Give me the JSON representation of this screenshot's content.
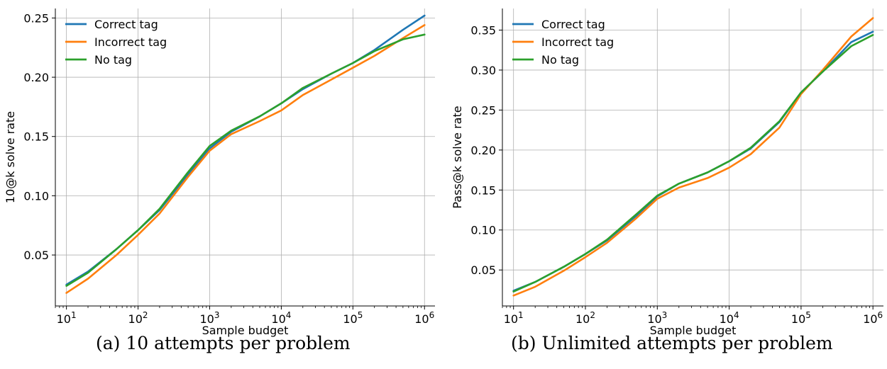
{
  "chart_data": [
    {
      "type": "line",
      "caption": "(a) 10 attempts per problem",
      "xlabel": "Sample budget",
      "ylabel": "10@k solve rate",
      "xscale": "log",
      "xlim": [
        7,
        1400000
      ],
      "ylim": [
        0.007,
        0.258
      ],
      "x_ticks": [
        {
          "value": 10,
          "exp": "1"
        },
        {
          "value": 100,
          "exp": "2"
        },
        {
          "value": 1000,
          "exp": "3"
        },
        {
          "value": 10000,
          "exp": "4"
        },
        {
          "value": 100000,
          "exp": "5"
        },
        {
          "value": 1000000,
          "exp": "6"
        }
      ],
      "y_ticks": [
        {
          "value": 0.05,
          "label": "0.05"
        },
        {
          "value": 0.1,
          "label": "0.10"
        },
        {
          "value": 0.15,
          "label": "0.15"
        },
        {
          "value": 0.2,
          "label": "0.20"
        },
        {
          "value": 0.25,
          "label": "0.25"
        }
      ],
      "grid": true,
      "legend": "upper-left",
      "series": [
        {
          "name": "Correct tag",
          "color": "#1f77b4",
          "x": [
            10,
            20,
            50,
            100,
            200,
            500,
            1000,
            2000,
            5000,
            10000,
            20000,
            50000,
            100000,
            200000,
            500000,
            1000000
          ],
          "y": [
            0.025,
            0.036,
            0.055,
            0.071,
            0.088,
            0.118,
            0.14,
            0.154,
            0.167,
            0.178,
            0.19,
            0.203,
            0.212,
            0.223,
            0.24,
            0.252
          ]
        },
        {
          "name": "Incorrect tag",
          "color": "#ff7f0e",
          "x": [
            10,
            20,
            50,
            100,
            200,
            500,
            1000,
            2000,
            5000,
            10000,
            20000,
            50000,
            100000,
            200000,
            500000,
            1000000
          ],
          "y": [
            0.018,
            0.03,
            0.05,
            0.067,
            0.085,
            0.116,
            0.138,
            0.152,
            0.163,
            0.172,
            0.185,
            0.198,
            0.208,
            0.218,
            0.233,
            0.244
          ]
        },
        {
          "name": "No tag",
          "color": "#2ca02c",
          "x": [
            10,
            20,
            50,
            100,
            200,
            500,
            1000,
            2000,
            5000,
            10000,
            20000,
            50000,
            100000,
            200000,
            500000,
            1000000
          ],
          "y": [
            0.024,
            0.035,
            0.055,
            0.071,
            0.089,
            0.12,
            0.142,
            0.155,
            0.167,
            0.178,
            0.191,
            0.203,
            0.212,
            0.222,
            0.232,
            0.236
          ]
        }
      ]
    },
    {
      "type": "line",
      "caption": "(b) Unlimited attempts per problem",
      "xlabel": "Sample budget",
      "ylabel": "Pass@k solve rate",
      "xscale": "log",
      "xlim": [
        7,
        1400000
      ],
      "ylim": [
        0.005,
        0.377
      ],
      "x_ticks": [
        {
          "value": 10,
          "exp": "1"
        },
        {
          "value": 100,
          "exp": "2"
        },
        {
          "value": 1000,
          "exp": "3"
        },
        {
          "value": 10000,
          "exp": "4"
        },
        {
          "value": 100000,
          "exp": "5"
        },
        {
          "value": 1000000,
          "exp": "6"
        }
      ],
      "y_ticks": [
        {
          "value": 0.05,
          "label": "0.05"
        },
        {
          "value": 0.1,
          "label": "0.10"
        },
        {
          "value": 0.15,
          "label": "0.15"
        },
        {
          "value": 0.2,
          "label": "0.20"
        },
        {
          "value": 0.25,
          "label": "0.25"
        },
        {
          "value": 0.3,
          "label": "0.30"
        },
        {
          "value": 0.35,
          "label": "0.35"
        }
      ],
      "grid": true,
      "legend": "upper-left",
      "series": [
        {
          "name": "Correct tag",
          "color": "#1f77b4",
          "x": [
            10,
            20,
            50,
            100,
            200,
            500,
            1000,
            2000,
            5000,
            10000,
            20000,
            50000,
            100000,
            200000,
            500000,
            1000000
          ],
          "y": [
            0.024,
            0.035,
            0.054,
            0.07,
            0.087,
            0.117,
            0.142,
            0.158,
            0.172,
            0.186,
            0.202,
            0.235,
            0.272,
            0.298,
            0.335,
            0.348
          ]
        },
        {
          "name": "Incorrect tag",
          "color": "#ff7f0e",
          "x": [
            10,
            20,
            50,
            100,
            200,
            500,
            1000,
            2000,
            5000,
            10000,
            20000,
            50000,
            100000,
            200000,
            500000,
            1000000
          ],
          "y": [
            0.018,
            0.029,
            0.049,
            0.066,
            0.084,
            0.114,
            0.139,
            0.153,
            0.165,
            0.178,
            0.195,
            0.228,
            0.27,
            0.3,
            0.342,
            0.365
          ]
        },
        {
          "name": "No tag",
          "color": "#2ca02c",
          "x": [
            10,
            20,
            50,
            100,
            200,
            500,
            1000,
            2000,
            5000,
            10000,
            20000,
            50000,
            100000,
            200000,
            500000,
            1000000
          ],
          "y": [
            0.023,
            0.035,
            0.054,
            0.07,
            0.088,
            0.119,
            0.143,
            0.158,
            0.172,
            0.186,
            0.203,
            0.236,
            0.272,
            0.298,
            0.33,
            0.344
          ]
        }
      ]
    }
  ]
}
